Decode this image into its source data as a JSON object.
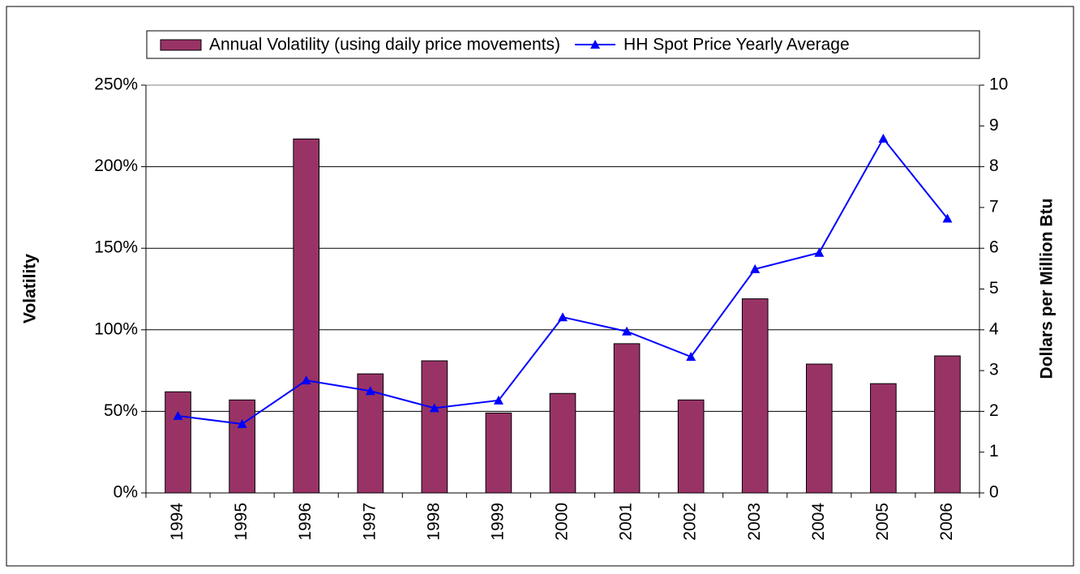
{
  "chart_data": {
    "type": "bar_line",
    "categories": [
      "1994",
      "1995",
      "1996",
      "1997",
      "1998",
      "1999",
      "2000",
      "2001",
      "2002",
      "2003",
      "2004",
      "2005",
      "2006"
    ],
    "series": [
      {
        "name": "Annual Volatility (using daily price movements)",
        "type": "bar",
        "color": "#993366",
        "axis": "y",
        "values": [
          62,
          57,
          217,
          73,
          81,
          49,
          61,
          91.5,
          57,
          119,
          79,
          67,
          84
        ]
      },
      {
        "name": "HH Spot Price Yearly Average",
        "type": "line",
        "color": "#0000ff",
        "axis": "y2",
        "values": [
          1.89,
          1.69,
          2.76,
          2.5,
          2.08,
          2.27,
          4.31,
          3.96,
          3.34,
          5.49,
          5.89,
          8.69,
          6.73
        ]
      }
    ],
    "ylabel": "Volatility",
    "y2label": "Dollars per Million Btu",
    "ylim": [
      0,
      250
    ],
    "yticks": [
      {
        "value": 0,
        "label": "0%"
      },
      {
        "value": 50,
        "label": "50%"
      },
      {
        "value": 100,
        "label": "100%"
      },
      {
        "value": 150,
        "label": "150%"
      },
      {
        "value": 200,
        "label": "200%"
      },
      {
        "value": 250,
        "label": "250%"
      }
    ],
    "y2lim": [
      0,
      10
    ],
    "y2ticks": [
      0,
      1,
      2,
      3,
      4,
      5,
      6,
      7,
      8,
      9,
      10
    ],
    "grid": true,
    "legend": "top"
  }
}
